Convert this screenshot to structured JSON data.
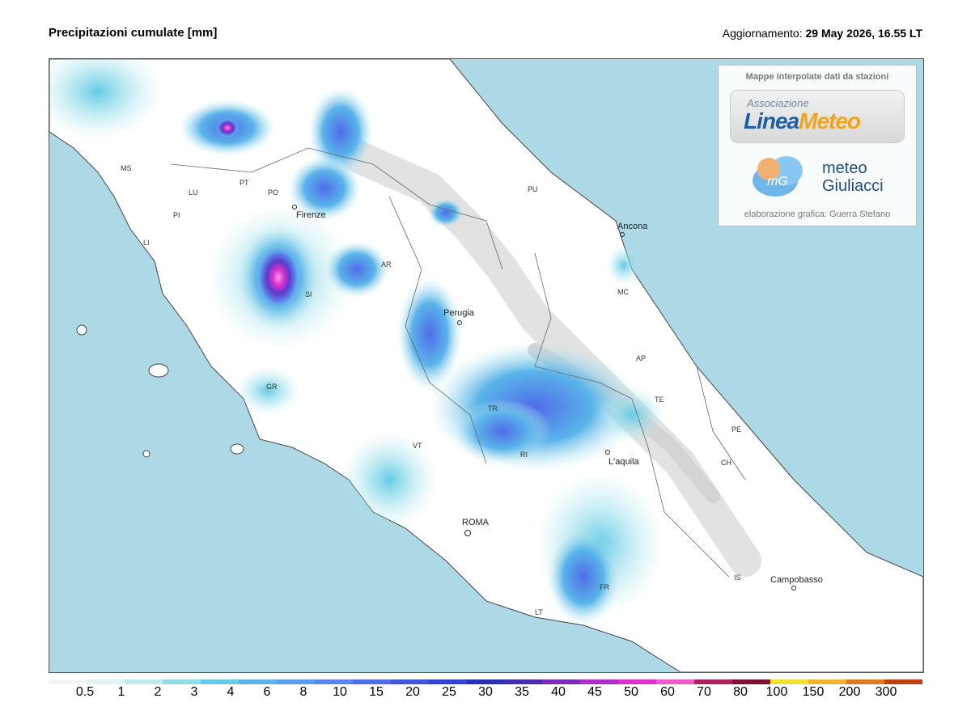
{
  "header": {
    "title": "Precipitazioni cumulate [mm]",
    "update_label": "Aggiornamento:",
    "update_value": "29 May 2026, 16.55 LT"
  },
  "credits": {
    "heading": "Mappe interpolate dati da stazioni",
    "association": "Associazione",
    "linea": "Linea",
    "meteo": "Meteo",
    "mg_mark": "mG",
    "mg_line1": "meteo",
    "mg_line2": "Giuliacci",
    "footer": "elaborazione grafica: Guerra Stefano"
  },
  "cities": [
    {
      "name": "Firenze",
      "kind": "city"
    },
    {
      "name": "Perugia",
      "kind": "city"
    },
    {
      "name": "Ancona",
      "kind": "city"
    },
    {
      "name": "ROMA",
      "kind": "city"
    },
    {
      "name": "L'aquila",
      "kind": "city"
    },
    {
      "name": "Campobasso",
      "kind": "city"
    },
    {
      "name": "MS",
      "kind": "prov"
    },
    {
      "name": "LU",
      "kind": "prov"
    },
    {
      "name": "PT",
      "kind": "prov"
    },
    {
      "name": "PO",
      "kind": "prov"
    },
    {
      "name": "PI",
      "kind": "prov"
    },
    {
      "name": "LI",
      "kind": "prov"
    },
    {
      "name": "AR",
      "kind": "prov"
    },
    {
      "name": "SI",
      "kind": "prov"
    },
    {
      "name": "GR",
      "kind": "prov"
    },
    {
      "name": "PU",
      "kind": "prov"
    },
    {
      "name": "MC",
      "kind": "prov"
    },
    {
      "name": "AP",
      "kind": "prov"
    },
    {
      "name": "TE",
      "kind": "prov"
    },
    {
      "name": "PE",
      "kind": "prov"
    },
    {
      "name": "CH",
      "kind": "prov"
    },
    {
      "name": "TR",
      "kind": "prov"
    },
    {
      "name": "RI",
      "kind": "prov"
    },
    {
      "name": "VT",
      "kind": "prov"
    },
    {
      "name": "IS",
      "kind": "prov"
    },
    {
      "name": "FR",
      "kind": "prov"
    },
    {
      "name": "LT",
      "kind": "prov"
    }
  ],
  "legend": {
    "values": [
      "0.5",
      "1",
      "2",
      "3",
      "4",
      "6",
      "8",
      "10",
      "15",
      "20",
      "25",
      "30",
      "35",
      "40",
      "45",
      "50",
      "60",
      "70",
      "80",
      "100",
      "150",
      "200",
      "300"
    ],
    "colors": [
      "#f4f4f4",
      "#e0f4f6",
      "#bdecef",
      "#8fdcea",
      "#63cbe6",
      "#5ab4ea",
      "#5b9cee",
      "#5a84ee",
      "#4f6de8",
      "#3f56e0",
      "#3143d2",
      "#2a2fb8",
      "#4a2cb4",
      "#7d2cc0",
      "#b02ccb",
      "#de2fcf",
      "#f05ac8",
      "#b0205a",
      "#801030",
      "#f2e030",
      "#f0b030",
      "#e07a20",
      "#c04010"
    ]
  }
}
